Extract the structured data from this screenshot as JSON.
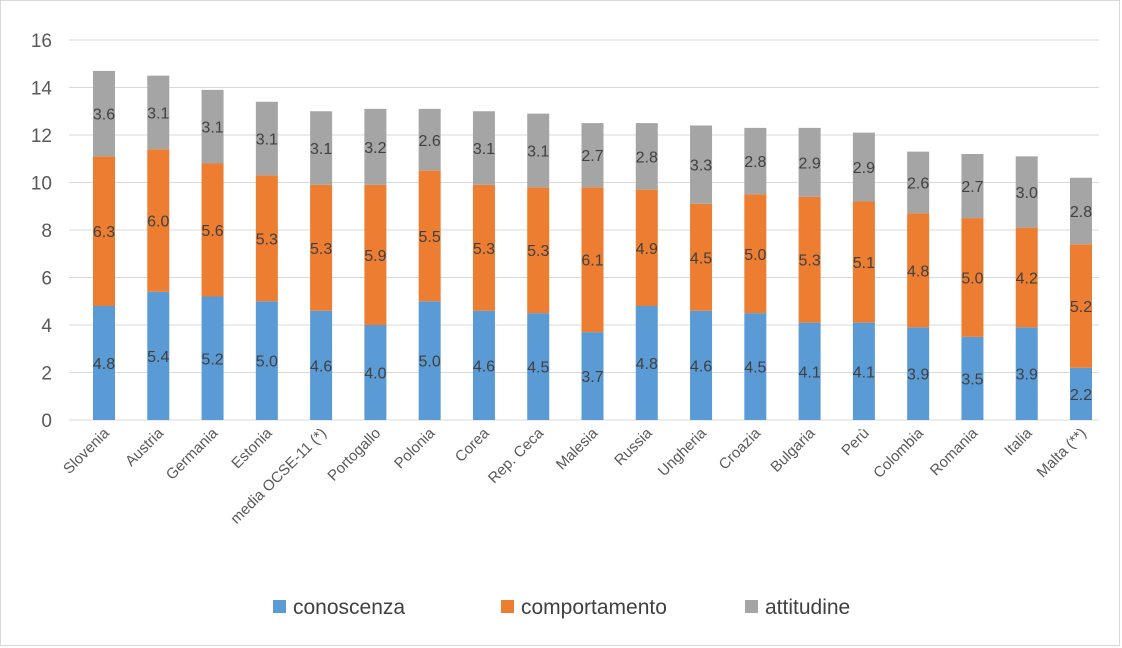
{
  "chart_data": {
    "type": "bar",
    "stacked": true,
    "categories": [
      "Slovenia",
      "Austria",
      "Germania",
      "Estonia",
      "media OCSE-11 (*)",
      "Portogallo",
      "Polonia",
      "Corea",
      "Rep. Ceca",
      "Malesia",
      "Russia",
      "Ungheria",
      "Croazia",
      "Bulgaria",
      "Perù",
      "Colombia",
      "Romania",
      "Italia",
      "Malta (**)"
    ],
    "series": [
      {
        "name": "conoscenza",
        "color": "#5b9bd5",
        "values": [
          4.8,
          5.4,
          5.2,
          5.0,
          4.6,
          4.0,
          5.0,
          4.6,
          4.5,
          3.7,
          4.8,
          4.6,
          4.5,
          4.1,
          4.1,
          3.9,
          3.5,
          3.9,
          2.2
        ]
      },
      {
        "name": "comportamento",
        "color": "#ed7d31",
        "values": [
          6.3,
          6.0,
          5.6,
          5.3,
          5.3,
          5.9,
          5.5,
          5.3,
          5.3,
          6.1,
          4.9,
          4.5,
          5.0,
          5.3,
          5.1,
          4.8,
          5.0,
          4.2,
          5.2
        ]
      },
      {
        "name": "attitudine",
        "color": "#a5a5a5",
        "values": [
          3.6,
          3.1,
          3.1,
          3.1,
          3.1,
          3.2,
          2.6,
          3.1,
          3.1,
          2.7,
          2.8,
          3.3,
          2.8,
          2.9,
          2.9,
          2.6,
          2.7,
          3.0,
          2.8
        ]
      }
    ],
    "ylim": [
      0,
      16
    ],
    "yticks": [
      0,
      2,
      4,
      6,
      8,
      10,
      12,
      14,
      16
    ],
    "grid": true,
    "legend_position": "bottom",
    "title": "",
    "xlabel": "",
    "ylabel": ""
  }
}
